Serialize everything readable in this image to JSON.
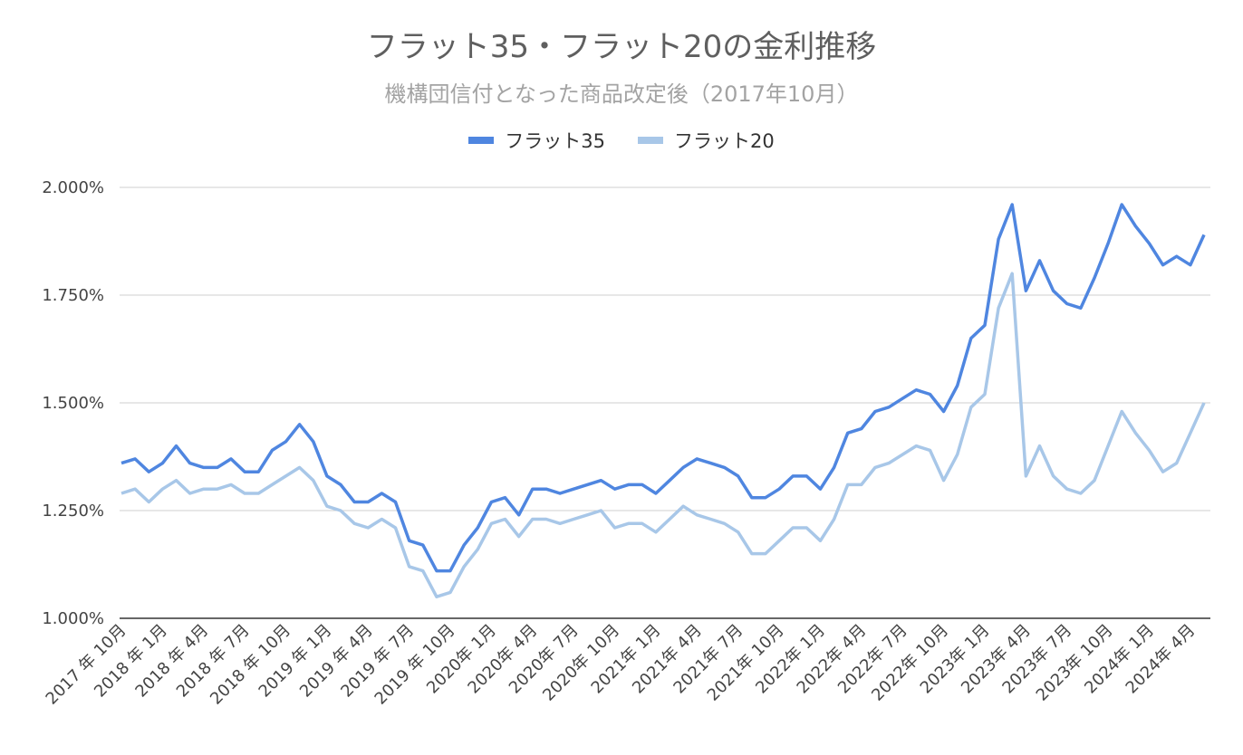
{
  "chart_data": {
    "type": "line",
    "title": "フラット35・フラット20の金利推移",
    "subtitle": "機構団信付となった商品改定後（2017年10月）",
    "ylim": [
      1.0,
      2.0
    ],
    "y_ticks": [
      "1.000%",
      "1.250%",
      "1.500%",
      "1.750%",
      "2.000%"
    ],
    "y_tick_values": [
      1.0,
      1.25,
      1.5,
      1.75,
      2.0
    ],
    "grid": true,
    "legend_position": "top-center",
    "x_tick_labels": [
      "2017 年 10月",
      "2018 年 1月",
      "2018 年 4月",
      "2018 年 7月",
      "2018 年 10月",
      "2019 年 1月",
      "2019 年 4月",
      "2019 年 7月",
      "2019 年 10月",
      "2020年 1月",
      "2020年 4月",
      "2020年 7月",
      "2020年 10月",
      "2021年 1月",
      "2021年 4月",
      "2021年 7月",
      "2021年 10月",
      "2022年 1月",
      "2022年 4月",
      "2022年 7月",
      "2022年 10月",
      "2023年 1月",
      "2023年 4月",
      "2023年 7月",
      "2023年 10月",
      "2024年 1月",
      "2024年 4月"
    ],
    "series": [
      {
        "name": "フラット35",
        "color": "#4f86e0",
        "values": [
          1.36,
          1.37,
          1.34,
          1.36,
          1.4,
          1.36,
          1.35,
          1.35,
          1.37,
          1.34,
          1.34,
          1.39,
          1.41,
          1.45,
          1.41,
          1.33,
          1.31,
          1.27,
          1.27,
          1.29,
          1.27,
          1.18,
          1.17,
          1.11,
          1.11,
          1.17,
          1.21,
          1.27,
          1.28,
          1.24,
          1.3,
          1.3,
          1.29,
          1.3,
          1.31,
          1.32,
          1.3,
          1.31,
          1.31,
          1.29,
          1.32,
          1.35,
          1.37,
          1.36,
          1.35,
          1.33,
          1.28,
          1.28,
          1.3,
          1.33,
          1.33,
          1.3,
          1.35,
          1.43,
          1.44,
          1.48,
          1.49,
          1.51,
          1.53,
          1.52,
          1.48,
          1.54,
          1.65,
          1.68,
          1.88,
          1.96,
          1.76,
          1.83,
          1.76,
          1.73,
          1.72,
          1.79,
          1.87,
          1.96,
          1.91,
          1.87,
          1.82,
          1.84,
          1.82,
          1.89
        ]
      },
      {
        "name": "フラット20",
        "color": "#a8c7e8",
        "values": [
          1.29,
          1.3,
          1.27,
          1.3,
          1.32,
          1.29,
          1.3,
          1.3,
          1.31,
          1.29,
          1.29,
          1.31,
          1.33,
          1.35,
          1.32,
          1.26,
          1.25,
          1.22,
          1.21,
          1.23,
          1.21,
          1.12,
          1.11,
          1.05,
          1.06,
          1.12,
          1.16,
          1.22,
          1.23,
          1.19,
          1.23,
          1.23,
          1.22,
          1.23,
          1.24,
          1.25,
          1.21,
          1.22,
          1.22,
          1.2,
          1.23,
          1.26,
          1.24,
          1.23,
          1.22,
          1.2,
          1.15,
          1.15,
          1.18,
          1.21,
          1.21,
          1.18,
          1.23,
          1.31,
          1.31,
          1.35,
          1.36,
          1.38,
          1.4,
          1.39,
          1.32,
          1.38,
          1.49,
          1.52,
          1.72,
          1.8,
          1.33,
          1.4,
          1.33,
          1.3,
          1.29,
          1.32,
          1.4,
          1.48,
          1.43,
          1.39,
          1.34,
          1.36,
          1.43,
          1.5
        ]
      }
    ]
  }
}
